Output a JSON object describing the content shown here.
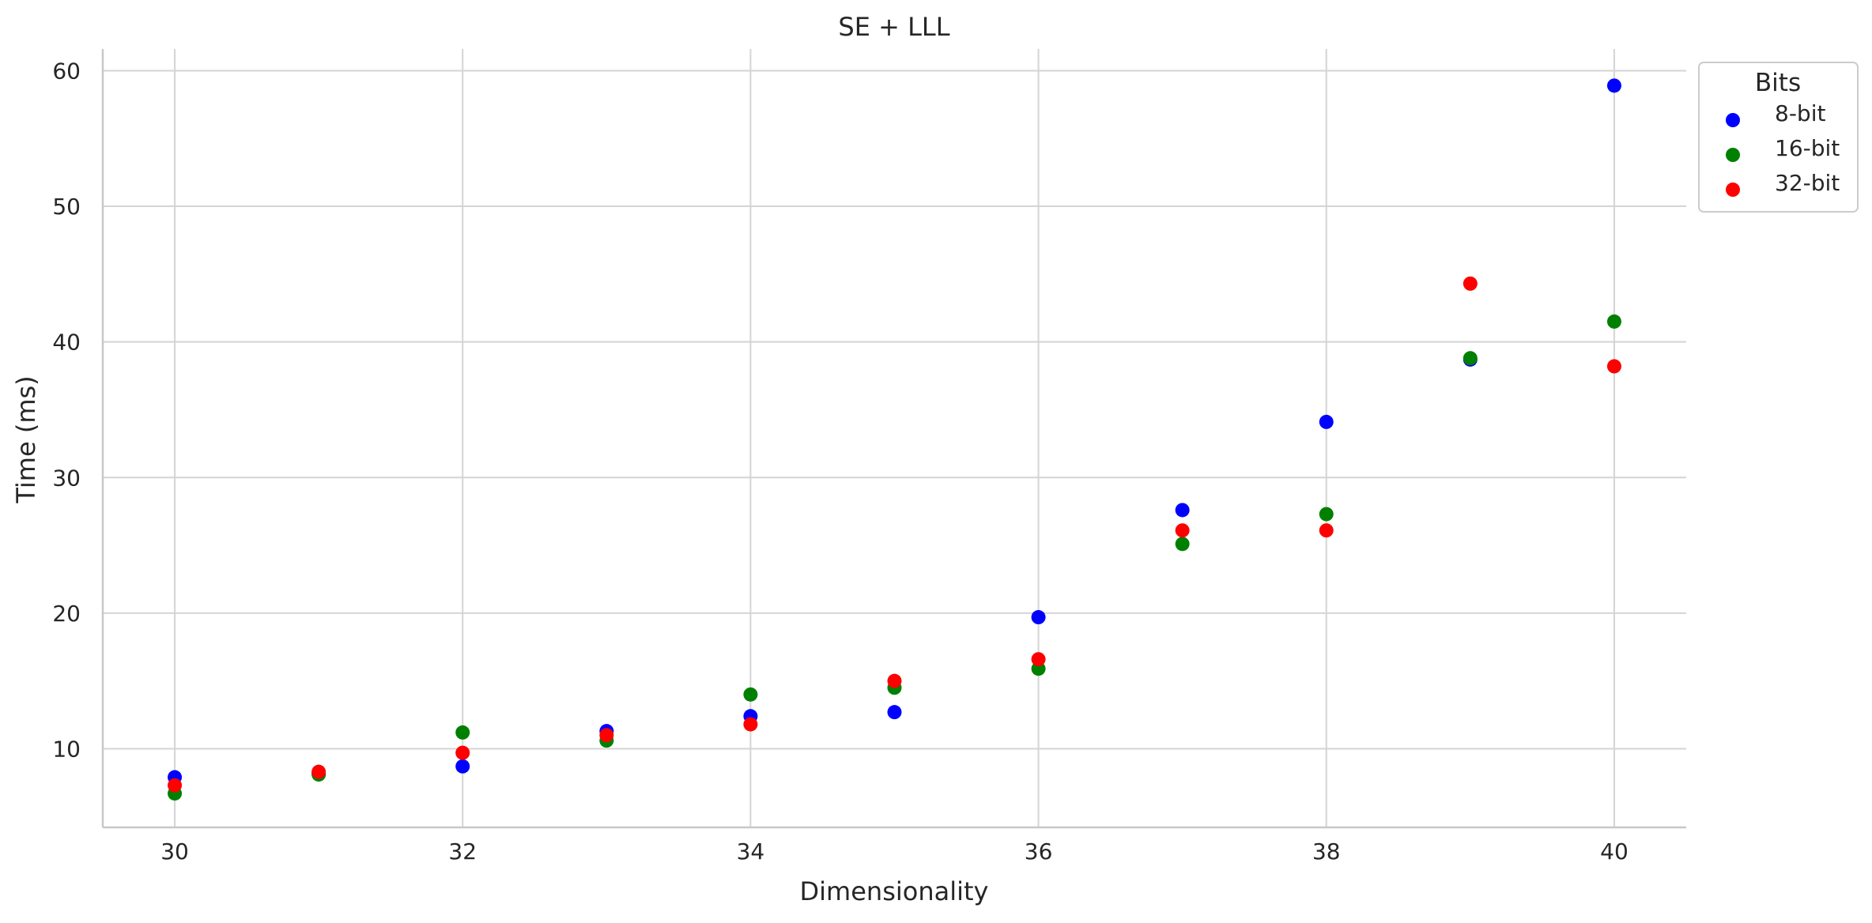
{
  "chart_data": {
    "type": "scatter",
    "title": "SE + LLL",
    "xlabel": "Dimensionality",
    "ylabel": "Time (ms)",
    "xlim": [
      29.5,
      40.5
    ],
    "ylim": [
      4.2,
      61.6
    ],
    "xticks": [
      30,
      32,
      34,
      36,
      38,
      40
    ],
    "yticks": [
      10,
      20,
      30,
      40,
      50,
      60
    ],
    "grid": true,
    "legend": {
      "title": "Bits",
      "placement": "outside top-right"
    },
    "x": [
      30,
      31,
      32,
      33,
      34,
      35,
      36,
      37,
      38,
      39,
      40
    ],
    "series": [
      {
        "name": "8-bit",
        "color": "#0000ff",
        "points": [
          [
            30,
            7.9
          ],
          [
            31,
            8.2
          ],
          [
            32,
            8.7
          ],
          [
            33,
            11.3
          ],
          [
            34,
            12.4
          ],
          [
            35,
            12.7
          ],
          [
            36,
            19.7
          ],
          [
            37,
            27.6
          ],
          [
            38,
            34.1
          ],
          [
            39,
            38.7
          ],
          [
            40,
            58.9
          ]
        ]
      },
      {
        "name": "16-bit",
        "color": "#008000",
        "points": [
          [
            30,
            6.7
          ],
          [
            31,
            8.1
          ],
          [
            32,
            11.2
          ],
          [
            33,
            10.6
          ],
          [
            34,
            14.0
          ],
          [
            35,
            14.5
          ],
          [
            36,
            15.9
          ],
          [
            37,
            25.1
          ],
          [
            38,
            27.3
          ],
          [
            39,
            38.8
          ],
          [
            40,
            41.5
          ]
        ]
      },
      {
        "name": "32-bit",
        "color": "#ff0000",
        "points": [
          [
            30,
            7.3
          ],
          [
            31,
            8.3
          ],
          [
            32,
            9.7
          ],
          [
            33,
            11.0
          ],
          [
            34,
            11.8
          ],
          [
            35,
            15.0
          ],
          [
            36,
            16.6
          ],
          [
            37,
            26.1
          ],
          [
            38,
            26.1
          ],
          [
            39,
            44.3
          ],
          [
            40,
            38.2
          ]
        ]
      }
    ]
  }
}
